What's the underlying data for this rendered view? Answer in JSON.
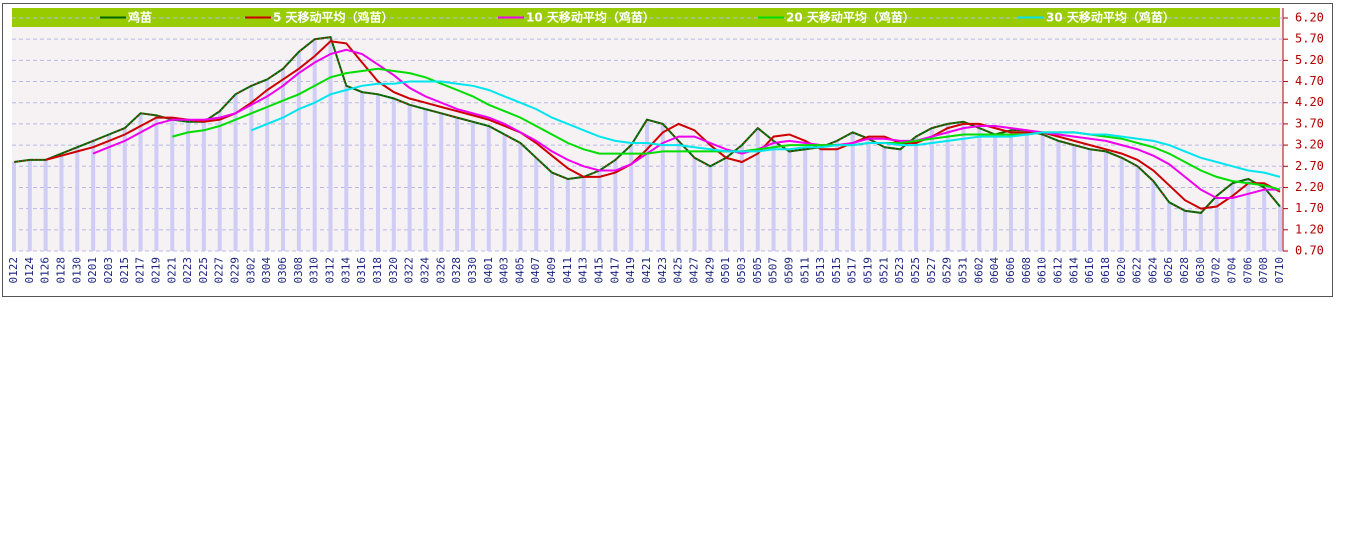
{
  "chart_data": {
    "type": "line",
    "categories": [
      "0122",
      "0124",
      "0126",
      "0128",
      "0130",
      "0201",
      "0203",
      "0215",
      "0217",
      "0219",
      "0221",
      "0223",
      "0225",
      "0227",
      "0229",
      "0302",
      "0304",
      "0306",
      "0308",
      "0310",
      "0312",
      "0314",
      "0316",
      "0318",
      "0320",
      "0322",
      "0324",
      "0326",
      "0328",
      "0330",
      "0401",
      "0403",
      "0405",
      "0407",
      "0409",
      "0411",
      "0413",
      "0415",
      "0417",
      "0419",
      "0421",
      "0423",
      "0425",
      "0427",
      "0429",
      "0501",
      "0503",
      "0505",
      "0507",
      "0509",
      "0511",
      "0513",
      "0515",
      "0517",
      "0519",
      "0521",
      "0523",
      "0525",
      "0527",
      "0529",
      "0531",
      "0602",
      "0604",
      "0606",
      "0608",
      "0610",
      "0612",
      "0614",
      "0616",
      "0618",
      "0620",
      "0622",
      "0624",
      "0626",
      "0628",
      "0630",
      "0702",
      "0704",
      "0706",
      "0708",
      "0710"
    ],
    "series": [
      {
        "name": "鸡苗",
        "color": "#006400",
        "values": [
          2.8,
          2.85,
          2.85,
          3.0,
          3.15,
          3.3,
          3.45,
          3.6,
          3.95,
          3.9,
          3.8,
          3.75,
          3.75,
          4.0,
          4.4,
          4.6,
          4.75,
          5.0,
          5.4,
          5.7,
          5.75,
          4.6,
          4.45,
          4.4,
          4.3,
          4.15,
          4.05,
          3.95,
          3.85,
          3.75,
          3.65,
          3.45,
          3.25,
          2.9,
          2.55,
          2.4,
          2.45,
          2.6,
          2.85,
          3.2,
          3.8,
          3.7,
          3.3,
          2.9,
          2.7,
          2.9,
          3.2,
          3.6,
          3.3,
          3.05,
          3.1,
          3.15,
          3.3,
          3.5,
          3.35,
          3.15,
          3.1,
          3.4,
          3.6,
          3.7,
          3.75,
          3.6,
          3.45,
          3.55,
          3.55,
          3.45,
          3.3,
          3.2,
          3.1,
          3.05,
          2.9,
          2.7,
          2.35,
          1.85,
          1.65,
          1.6,
          2.0,
          2.3,
          2.4,
          2.2,
          1.75
        ]
      },
      {
        "name": "5 天移动平均（鸡苗）",
        "color": "#cc0000",
        "values": [
          null,
          null,
          2.85,
          2.95,
          3.05,
          3.15,
          3.3,
          3.45,
          3.65,
          3.85,
          3.85,
          3.8,
          3.75,
          3.8,
          3.95,
          4.2,
          4.5,
          4.75,
          5.0,
          5.3,
          5.65,
          5.6,
          5.15,
          4.7,
          4.45,
          4.3,
          4.2,
          4.1,
          4.0,
          3.9,
          3.8,
          3.65,
          3.5,
          3.25,
          2.95,
          2.65,
          2.45,
          2.45,
          2.55,
          2.75,
          3.1,
          3.5,
          3.7,
          3.55,
          3.2,
          2.9,
          2.8,
          3.0,
          3.4,
          3.45,
          3.3,
          3.1,
          3.1,
          3.25,
          3.4,
          3.4,
          3.25,
          3.25,
          3.4,
          3.6,
          3.7,
          3.7,
          3.6,
          3.5,
          3.5,
          3.5,
          3.4,
          3.3,
          3.2,
          3.1,
          3.0,
          2.85,
          2.6,
          2.25,
          1.9,
          1.7,
          1.75,
          2.0,
          2.3,
          2.3,
          2.1
        ]
      },
      {
        "name": "10 天移动平均（鸡苗）",
        "color": "#ee00ee",
        "values": [
          null,
          null,
          null,
          null,
          null,
          3.0,
          3.15,
          3.3,
          3.5,
          3.7,
          3.8,
          3.8,
          3.8,
          3.85,
          3.95,
          4.15,
          4.35,
          4.6,
          4.9,
          5.15,
          5.35,
          5.45,
          5.35,
          5.1,
          4.85,
          4.55,
          4.35,
          4.2,
          4.05,
          3.95,
          3.85,
          3.7,
          3.5,
          3.3,
          3.05,
          2.85,
          2.7,
          2.6,
          2.6,
          2.75,
          3.0,
          3.25,
          3.4,
          3.4,
          3.25,
          3.1,
          3.0,
          3.1,
          3.25,
          3.3,
          3.25,
          3.2,
          3.2,
          3.25,
          3.35,
          3.35,
          3.3,
          3.3,
          3.4,
          3.5,
          3.6,
          3.65,
          3.65,
          3.6,
          3.55,
          3.5,
          3.45,
          3.4,
          3.35,
          3.3,
          3.2,
          3.1,
          2.95,
          2.75,
          2.45,
          2.15,
          1.95,
          1.95,
          2.05,
          2.15,
          2.15
        ]
      },
      {
        "name": "20 天移动平均（鸡苗）",
        "color": "#00dd00",
        "values": [
          null,
          null,
          null,
          null,
          null,
          null,
          null,
          null,
          null,
          null,
          3.4,
          3.5,
          3.55,
          3.65,
          3.8,
          3.95,
          4.1,
          4.25,
          4.4,
          4.6,
          4.8,
          4.9,
          4.95,
          5.0,
          4.95,
          4.9,
          4.8,
          4.65,
          4.5,
          4.35,
          4.15,
          4.0,
          3.85,
          3.65,
          3.45,
          3.25,
          3.1,
          3.0,
          3.0,
          3.0,
          3.0,
          3.05,
          3.05,
          3.05,
          3.05,
          3.05,
          3.05,
          3.1,
          3.15,
          3.2,
          3.2,
          3.2,
          3.2,
          3.2,
          3.25,
          3.25,
          3.25,
          3.3,
          3.35,
          3.4,
          3.45,
          3.45,
          3.45,
          3.45,
          3.45,
          3.5,
          3.5,
          3.5,
          3.45,
          3.4,
          3.35,
          3.25,
          3.15,
          3.0,
          2.8,
          2.6,
          2.45,
          2.35,
          2.3,
          2.25,
          2.15
        ]
      },
      {
        "name": "30 天移动平均（鸡苗）",
        "color": "#00e5ee",
        "values": [
          null,
          null,
          null,
          null,
          null,
          null,
          null,
          null,
          null,
          null,
          null,
          null,
          null,
          null,
          null,
          3.55,
          3.7,
          3.85,
          4.05,
          4.2,
          4.4,
          4.5,
          4.6,
          4.65,
          4.65,
          4.7,
          4.7,
          4.7,
          4.65,
          4.6,
          4.5,
          4.35,
          4.2,
          4.05,
          3.85,
          3.7,
          3.55,
          3.4,
          3.3,
          3.25,
          3.25,
          3.2,
          3.2,
          3.15,
          3.1,
          3.05,
          3.05,
          3.05,
          3.1,
          3.1,
          3.15,
          3.15,
          3.2,
          3.2,
          3.25,
          3.25,
          3.2,
          3.2,
          3.25,
          3.3,
          3.35,
          3.4,
          3.4,
          3.4,
          3.45,
          3.5,
          3.5,
          3.5,
          3.45,
          3.45,
          3.4,
          3.35,
          3.3,
          3.2,
          3.05,
          2.9,
          2.8,
          2.7,
          2.6,
          2.55,
          2.45
        ]
      }
    ],
    "ylim": [
      0.7,
      6.2
    ],
    "yticks": [
      {
        "value": 0.7,
        "label": "0.70"
      },
      {
        "value": 1.2,
        "label": "1.20"
      },
      {
        "value": 1.7,
        "label": "1.70"
      },
      {
        "value": 2.2,
        "label": "2.20"
      },
      {
        "value": 2.7,
        "label": "2.70"
      },
      {
        "value": 3.2,
        "label": "3.20"
      },
      {
        "value": 3.7,
        "label": "3.70"
      },
      {
        "value": 4.2,
        "label": "4.20"
      },
      {
        "value": 4.7,
        "label": "4.70"
      },
      {
        "value": 5.2,
        "label": "5.20"
      },
      {
        "value": 5.7,
        "label": "5.70"
      },
      {
        "value": 6.2,
        "label": "6.20"
      }
    ],
    "grid": true,
    "legend": "top"
  }
}
